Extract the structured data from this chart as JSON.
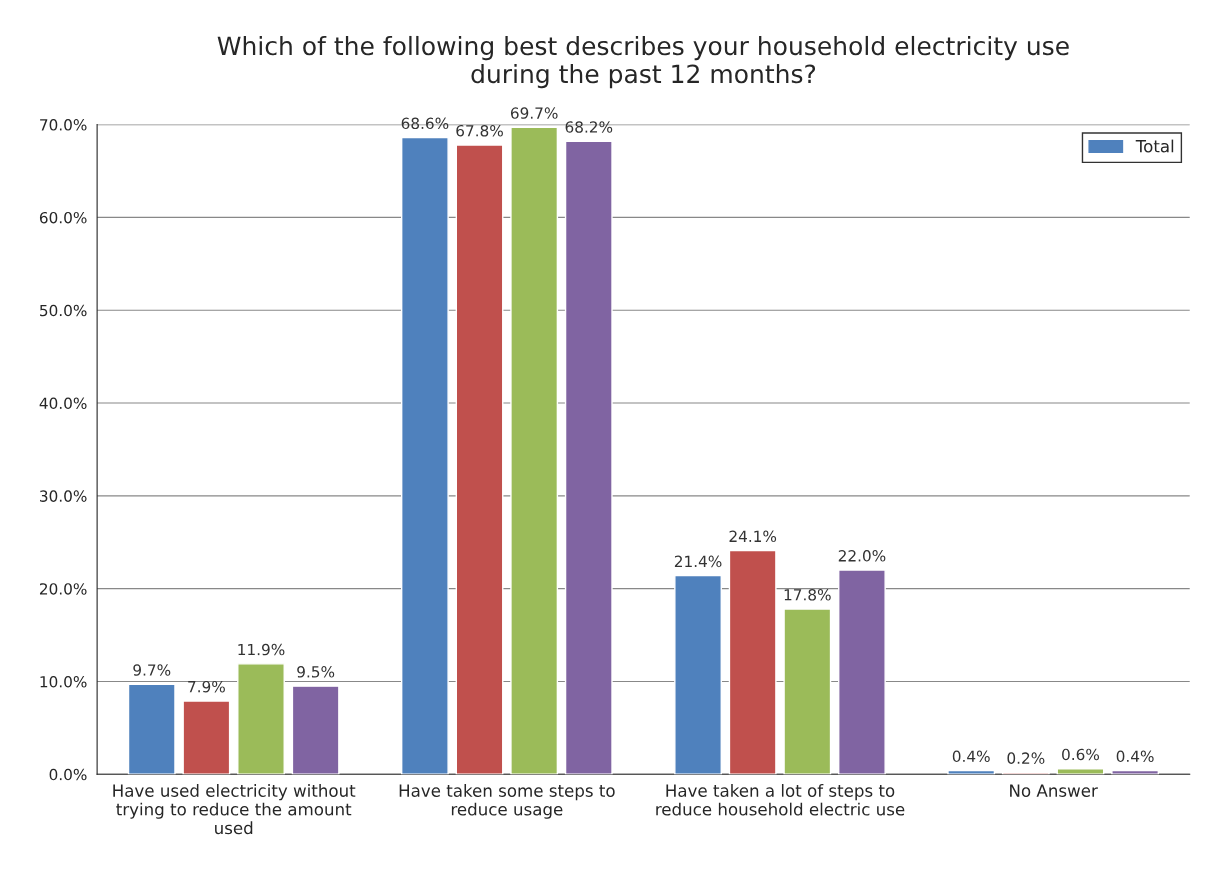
{
  "chart_data": {
    "type": "bar",
    "title": "Which of the following best describes your household electricity use\nduring the past 12 months?",
    "categories": [
      "Have used electricity without\ntrying to reduce the amount\nused",
      "Have taken some steps to\nreduce usage",
      "Have taken a lot of steps to\nreduce household electric use",
      "No Answer"
    ],
    "series": [
      {
        "name": "Total",
        "color": "#4f81bd",
        "values": [
          9.7,
          68.6,
          21.4,
          0.4
        ],
        "value_labels": [
          "9.7%",
          "68.6%",
          "21.4%",
          "0.4%"
        ]
      },
      {
        "color": "#c0504d",
        "values": [
          7.9,
          67.8,
          24.1,
          0.2
        ],
        "value_labels": [
          "7.9%",
          "67.8%",
          "24.1%",
          "0.2%"
        ]
      },
      {
        "color": "#9bbb59",
        "values": [
          11.9,
          69.7,
          17.8,
          0.6
        ],
        "value_labels": [
          "11.9%",
          "69.7%",
          "17.8%",
          "0.6%"
        ]
      },
      {
        "color": "#8064a2",
        "values": [
          9.5,
          68.2,
          22.0,
          0.4
        ],
        "value_labels": [
          "9.5%",
          "68.2%",
          "22.0%",
          "0.4%"
        ]
      }
    ],
    "ylim": [
      0,
      70
    ],
    "yticks": [
      {
        "value": 0,
        "label": "0.0%"
      },
      {
        "value": 10,
        "label": "10.0%"
      },
      {
        "value": 20,
        "label": "20.0%"
      },
      {
        "value": 30,
        "label": "30.0%"
      },
      {
        "value": 40,
        "label": "40.0%"
      },
      {
        "value": 50,
        "label": "50.0%"
      },
      {
        "value": 60,
        "label": "60.0%"
      },
      {
        "value": 70,
        "label": "70.0%"
      }
    ],
    "grid": "y",
    "legend": "top right"
  }
}
